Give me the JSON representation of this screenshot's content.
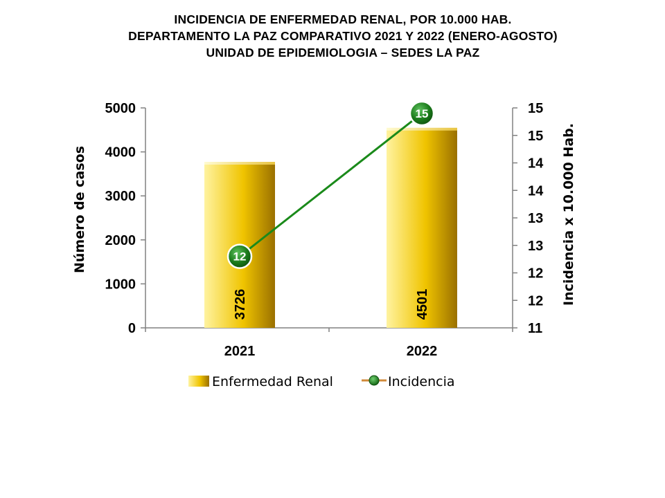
{
  "title_lines": [
    "INCIDENCIA  DE  ENFERMEDAD  RENAL,  POR 10.000 HAB.",
    "DEPARTAMENTO  LA PAZ COMPARATIVO  2021 Y 2022 (ENERO-AGOSTO)",
    "UNIDAD DE EPIDEMIOLOGIA – SEDES LA PAZ"
  ],
  "colors": {
    "bar_light": "#fff3a0",
    "bar_mid": "#f0c400",
    "bar_dark": "#9a7000",
    "line": "#1a8a1a",
    "marker": "#1a7a1a",
    "axis": "#808080"
  },
  "chart_data": {
    "type": "bar",
    "categories": [
      "2021",
      "2022"
    ],
    "series": [
      {
        "name": "Enfermedad Renal",
        "type": "bar",
        "axis": "left",
        "values": [
          3726,
          4501
        ],
        "data_labels": [
          "3726",
          "4501"
        ]
      },
      {
        "name": "Incidencia",
        "type": "line",
        "axis": "right",
        "values": [
          12.3,
          14.9
        ],
        "data_labels": [
          "12",
          "15"
        ]
      }
    ],
    "ylabel": "Número de casos",
    "y2label": "Incidencia x 10.000 Hab.",
    "ylim": [
      0,
      5000
    ],
    "y2lim": [
      11,
      15
    ],
    "y_ticks": [
      0,
      1000,
      2000,
      3000,
      4000,
      5000
    ],
    "y2_ticks": [
      11,
      11.5,
      12,
      12.5,
      13,
      13.5,
      14,
      14.5,
      15
    ],
    "y2_tick_labels": [
      "11",
      "12",
      "12",
      "13",
      "13",
      "14",
      "14",
      "15",
      "15"
    ],
    "grid": false,
    "legend_position": "bottom"
  }
}
